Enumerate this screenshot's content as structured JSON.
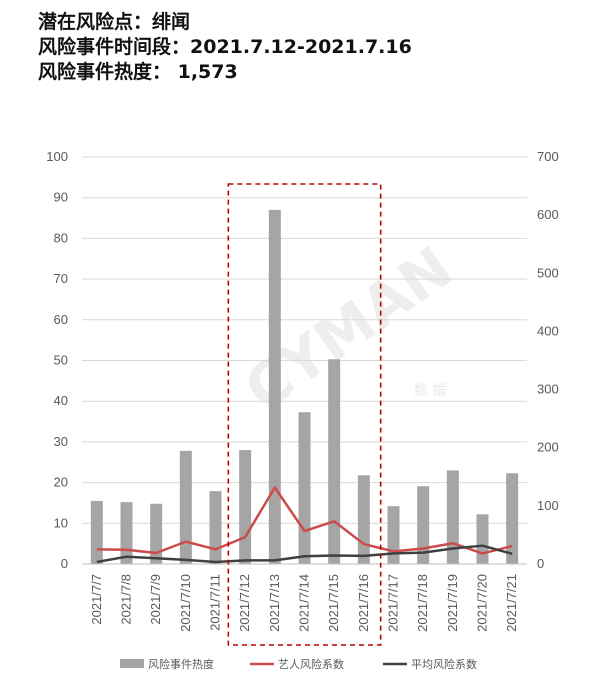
{
  "header": {
    "line1": "潜在风险点：绯闻",
    "line2": "风险事件时间段：2021.7.12-2021.7.16",
    "line3": "风险事件热度： 1,573"
  },
  "watermark": {
    "text": "CYMAN",
    "sub": "数 据"
  },
  "colors": {
    "bar": "#a5a5a5",
    "line_artist": "#cc4b4b",
    "line_avg": "#404040",
    "highlight": "#c00000",
    "grid": "#d9d9d9"
  },
  "chart_data": {
    "type": "bar",
    "categories": [
      "2021/7/7",
      "2021/7/8",
      "2021/7/9",
      "2021/7/10",
      "2021/7/11",
      "2021/7/12",
      "2021/7/13",
      "2021/7/14",
      "2021/7/15",
      "2021/7/16",
      "2021/7/17",
      "2021/7/18",
      "2021/7/19",
      "2021/7/20",
      "2021/7/21"
    ],
    "series": [
      {
        "name": "风险事件热度",
        "type": "bar",
        "axis": "left",
        "values": [
          15.5,
          15.2,
          14.8,
          27.8,
          17.9,
          28.0,
          87.0,
          37.3,
          50.3,
          21.8,
          14.2,
          19.1,
          23.0,
          12.2,
          22.3
        ]
      },
      {
        "name": "艺人风险系数",
        "type": "line",
        "axis": "left",
        "values": [
          3.6,
          3.5,
          2.7,
          5.5,
          3.6,
          6.6,
          18.8,
          8.1,
          10.5,
          4.9,
          3.1,
          3.8,
          5.1,
          2.6,
          4.4
        ]
      },
      {
        "name": "平均风险系数",
        "type": "line",
        "axis": "left",
        "values": [
          0.5,
          1.8,
          1.4,
          1.0,
          0.5,
          0.9,
          0.9,
          1.9,
          2.1,
          2.0,
          2.6,
          2.8,
          3.8,
          4.5,
          2.5
        ]
      }
    ],
    "y_left": {
      "min": 0,
      "max": 100,
      "step": 10
    },
    "y_right": {
      "min": 0,
      "max": 700,
      "step": 100
    },
    "grid": true,
    "legend_position": "bottom",
    "highlight_range": [
      "2021/7/12",
      "2021/7/16"
    ]
  }
}
